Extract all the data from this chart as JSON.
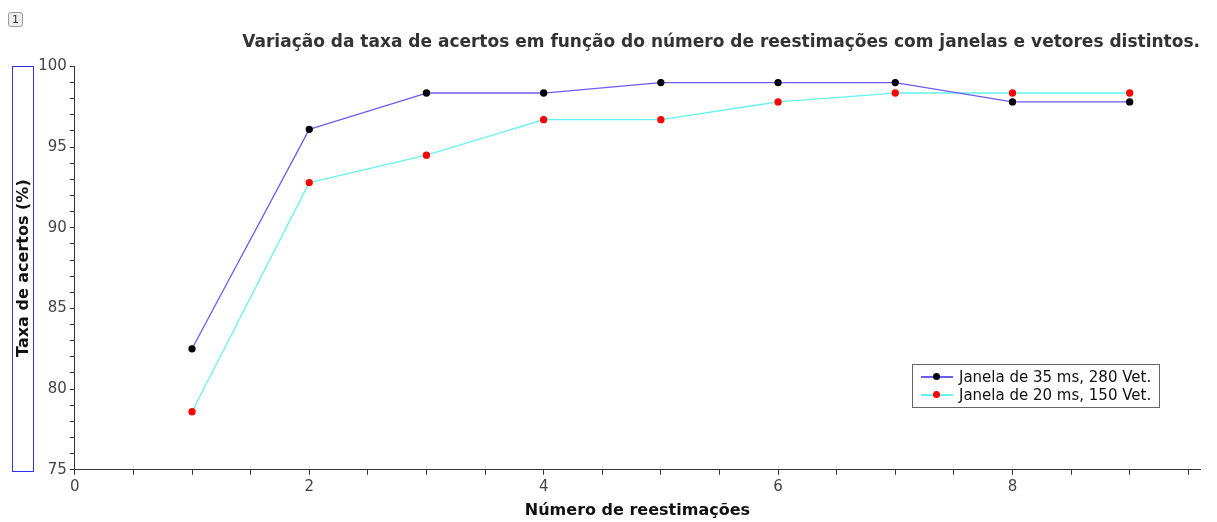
{
  "chart_data": {
    "type": "line",
    "title": "Variação da taxa de acertos em função do número de reestimações com janelas e vetores distintos.",
    "xlabel": "Número de reestimações",
    "ylabel": "Taxa de acertos (%)",
    "annotations": [
      "1"
    ],
    "x": [
      1,
      2,
      3,
      4,
      5,
      6,
      7,
      8,
      9
    ],
    "series": [
      {
        "name": "Janela de 35 ms, 280 Vet.",
        "color": "#6a5cf0",
        "colors": [
          "#000000",
          "#000000",
          "#000000",
          "#000000",
          "#000000",
          "#000000",
          "#000000",
          "#000000",
          "#000000"
        ],
        "values": [
          82.5,
          96.1,
          98.35,
          98.35,
          99,
          99,
          99,
          97.8,
          97.8
        ]
      },
      {
        "name": "Janela de 20 ms, 150 Vet.",
        "color": "#66f2f2",
        "colors": [
          "#ff0000",
          "#ff0000",
          "#ff0000",
          "#ff0000",
          "#ff0000",
          "#ff0000",
          "#ff0000",
          "#ff0000",
          "#ff0000"
        ],
        "values": [
          78.6,
          92.8,
          94.5,
          96.7,
          96.7,
          97.8,
          98.35,
          98.35,
          98.35
        ]
      }
    ],
    "xlim": [
      0,
      9.6
    ],
    "xticks": [
      0,
      {
        "value": 0.5,
        "label": null
      },
      {
        "value": 1,
        "label": null
      },
      {
        "value": 1.5,
        "label": null
      },
      2,
      {
        "value": 2.5,
        "label": null
      },
      {
        "value": 3,
        "label": null
      },
      {
        "value": 3.5,
        "label": null
      },
      4,
      {
        "value": 4.5,
        "label": null
      },
      {
        "value": 5,
        "label": null
      },
      {
        "value": 5.5,
        "label": null
      },
      6,
      {
        "value": 6.5,
        "label": null
      },
      {
        "value": 7,
        "label": null
      },
      {
        "value": 7.5,
        "label": null
      },
      8,
      {
        "value": 8.5,
        "label": null
      },
      {
        "value": 9,
        "label": null
      },
      {
        "value": 9.5,
        "label": null
      }
    ],
    "ylim": [
      75,
      100
    ],
    "yticks": [
      75,
      {
        "value": 76,
        "label": null
      },
      {
        "value": 77,
        "label": null
      },
      {
        "value": 78,
        "label": null
      },
      {
        "value": 79,
        "label": null
      },
      80,
      {
        "value": 81,
        "label": null
      },
      {
        "value": 82,
        "label": null
      },
      {
        "value": 83,
        "label": null
      },
      {
        "value": 84,
        "label": null
      },
      85,
      {
        "value": 86,
        "label": null
      },
      {
        "value": 87,
        "label": null
      },
      {
        "value": 88,
        "label": null
      },
      {
        "value": 89,
        "label": null
      },
      90,
      {
        "value": 91,
        "label": null
      },
      {
        "value": 92,
        "label": null
      },
      {
        "value": 93,
        "label": null
      },
      {
        "value": 94,
        "label": null
      },
      95,
      {
        "value": 96,
        "label": null
      },
      {
        "value": 97,
        "label": null
      },
      {
        "value": 98,
        "label": null
      },
      {
        "value": 99,
        "label": null
      },
      100
    ],
    "grid": false,
    "legend": "bottom right",
    "marker": "circle",
    "line_style": "solid"
  }
}
